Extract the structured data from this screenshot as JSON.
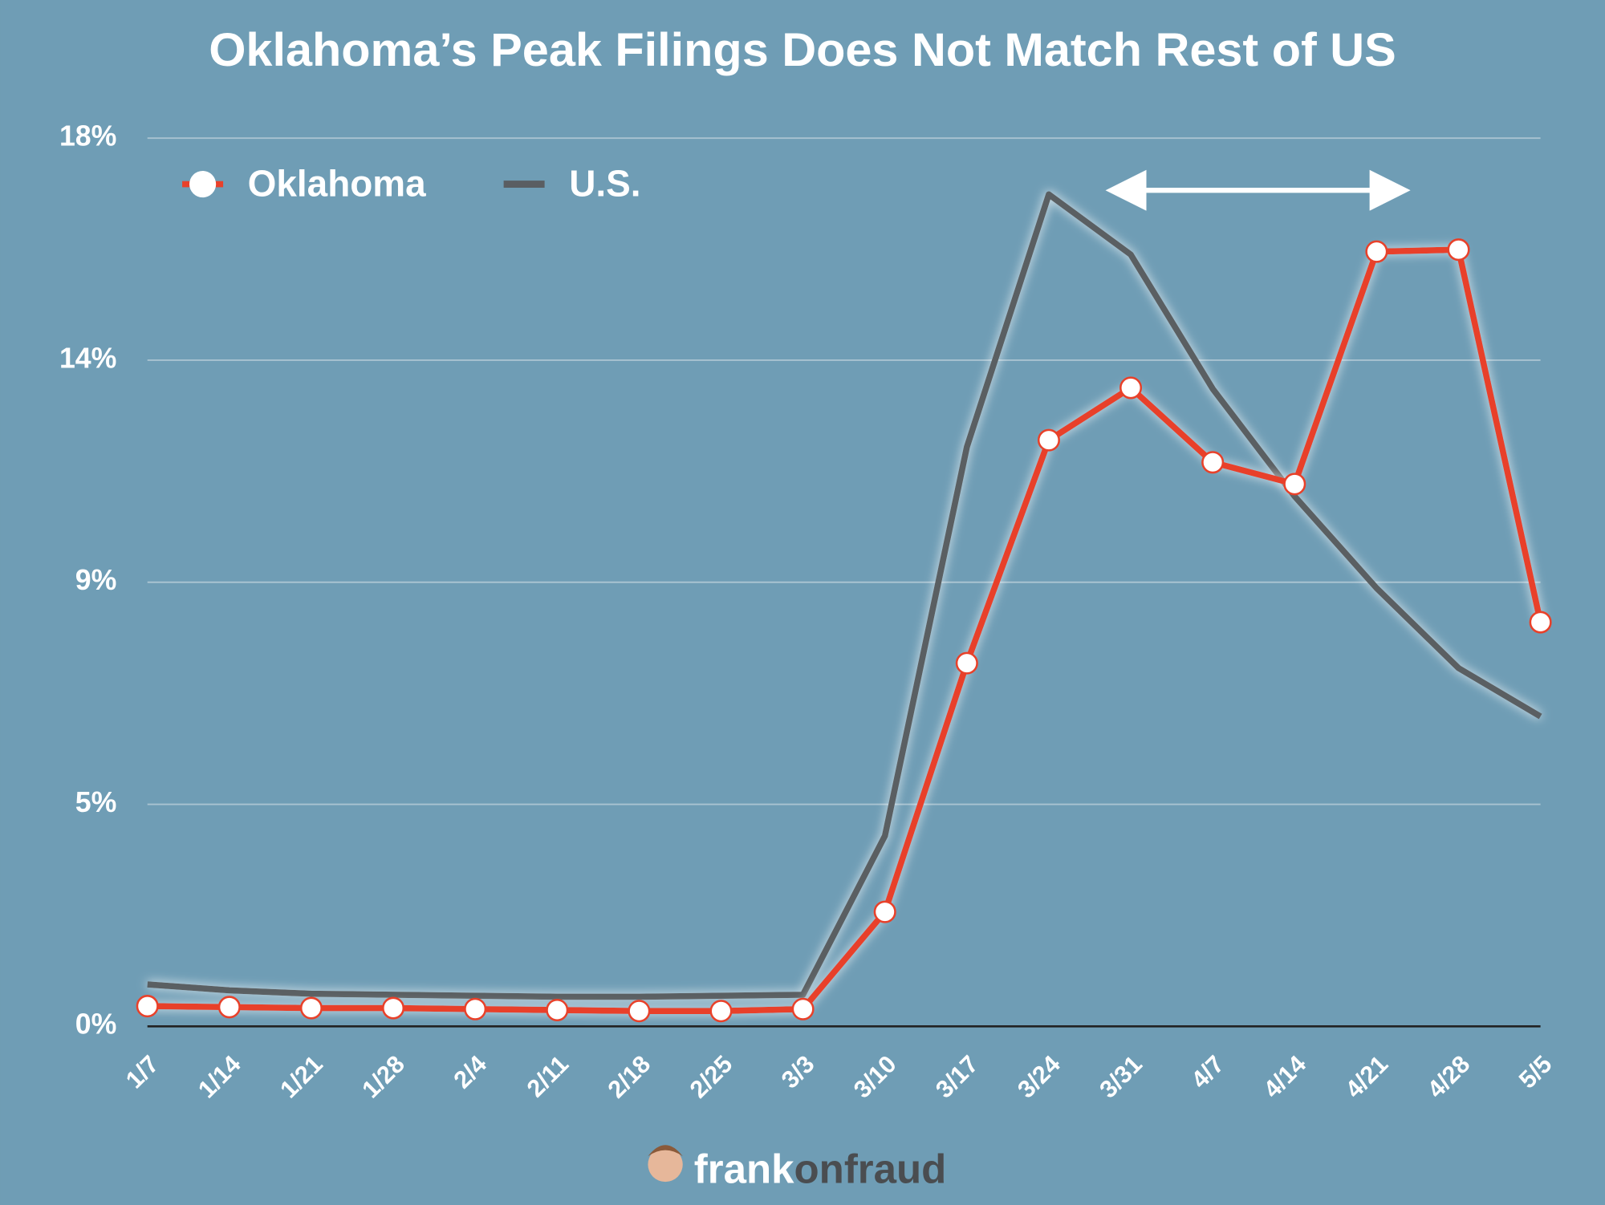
{
  "chart_data": {
    "type": "line",
    "title": "Oklahoma’s Peak Filings Does Not Match Rest of US",
    "categories": [
      "1/7",
      "1/14",
      "1/21",
      "1/28",
      "2/4",
      "2/11",
      "2/18",
      "2/25",
      "3/3",
      "3/10",
      "3/17",
      "3/24",
      "3/31",
      "4/7",
      "4/14",
      "4/21",
      "4/28",
      "5/5"
    ],
    "series": [
      {
        "name": "Oklahoma",
        "color": "#e8412a",
        "markers": true,
        "values": [
          0.41,
          0.39,
          0.37,
          0.37,
          0.35,
          0.33,
          0.31,
          0.31,
          0.35,
          2.32,
          7.36,
          11.88,
          12.94,
          11.43,
          10.99,
          15.7,
          15.74,
          8.19
        ]
      },
      {
        "name": "U.S.",
        "color": "#5a5e62",
        "markers": false,
        "values": [
          0.85,
          0.73,
          0.66,
          0.64,
          0.62,
          0.6,
          0.6,
          0.62,
          0.64,
          3.86,
          11.74,
          16.86,
          15.64,
          12.92,
          10.74,
          8.88,
          7.26,
          6.28
        ]
      }
    ],
    "ylim": [
      0,
      18
    ],
    "yticks": [
      {
        "value": 0,
        "label": "0%"
      },
      {
        "value": 4.5,
        "label": "5%"
      },
      {
        "value": 9,
        "label": "9%"
      },
      {
        "value": 13.5,
        "label": "14%"
      },
      {
        "value": 18,
        "label": "18%"
      }
    ],
    "grid": true,
    "legend": "upper left",
    "logo": [
      "frank",
      "onfraud"
    ]
  }
}
